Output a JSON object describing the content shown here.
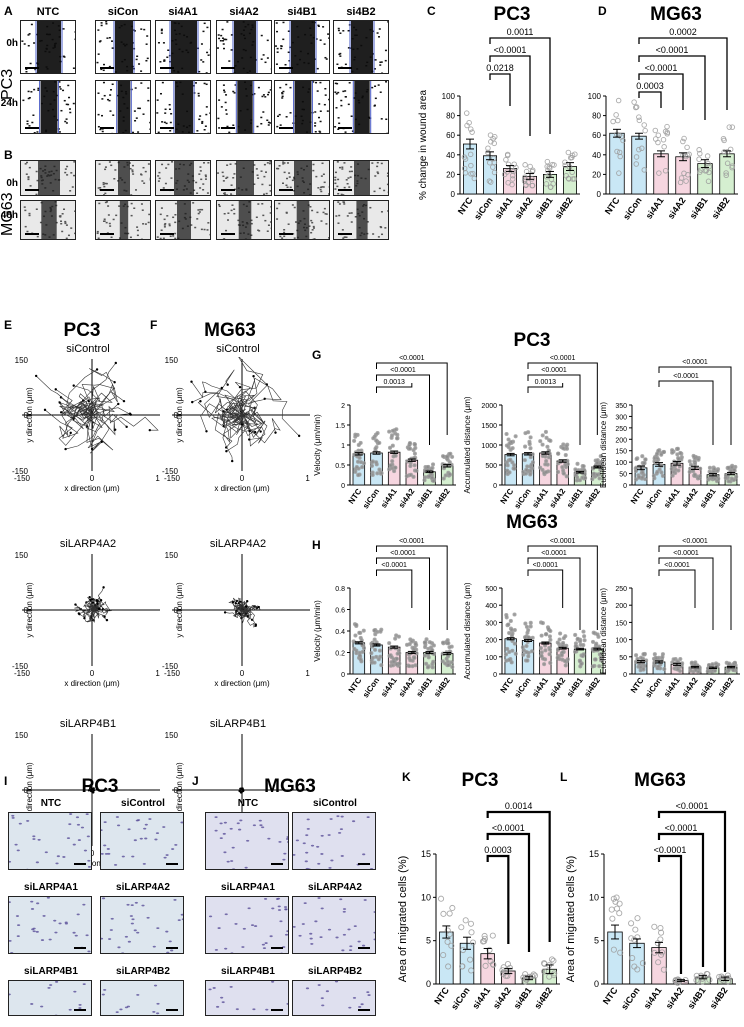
{
  "panels": {
    "A": "A",
    "B": "B",
    "C": "C",
    "D": "D",
    "E": "E",
    "F": "F",
    "G": "G",
    "H": "H",
    "I": "I",
    "J": "J",
    "K": "K",
    "L": "L"
  },
  "wound_images": {
    "columns": [
      "NTC",
      "siCon",
      "si4A1",
      "si4A2",
      "si4B1",
      "si4B2"
    ],
    "pc3_label": "PC3",
    "mg63_label": "MG63",
    "times_pc3": [
      "0h",
      "24h"
    ],
    "times_mg63": [
      "0h",
      "48h"
    ]
  },
  "tracks": {
    "pc3_title": "PC3",
    "mg63_title": "MG63",
    "conditions": [
      "siControl",
      "siLARP4A2",
      "siLARP4B1"
    ],
    "xlabel": "x direction (μm)",
    "ylabel": "y direction (μm)",
    "ticks": [
      "-150",
      "0",
      "150"
    ]
  },
  "transwell": {
    "pc3_title": "PC3",
    "mg63_title": "MG63",
    "labels": [
      "NTC",
      "siControl",
      "siLARP4A1",
      "siLARP4A2",
      "siLARP4B1",
      "siLARP4B2"
    ]
  },
  "colors": {
    "NTC": "#c9e7f5",
    "siCon": "#c9e7f5",
    "si4A1": "#f6d6e0",
    "si4A2": "#f6d6e0",
    "si4B1": "#d5efd0",
    "si4B2": "#d5efd0",
    "dots": "#9c9c9c"
  },
  "chart_data": [
    {
      "id": "C",
      "type": "bar",
      "title": "PC3",
      "ylabel": "% change in wound area",
      "ylim": [
        0,
        100
      ],
      "yticks": [
        0,
        20,
        40,
        60,
        80,
        100
      ],
      "categories": [
        "NTC",
        "siCon",
        "si4A1",
        "si4A2",
        "si4B1",
        "si4B2"
      ],
      "values": [
        51,
        39,
        26,
        18,
        20,
        28
      ],
      "errors": [
        5,
        4,
        3,
        3,
        3,
        4
      ],
      "comparisons": [
        {
          "from": "siCon",
          "to": "si4A1",
          "label": "0.0218"
        },
        {
          "from": "siCon",
          "to": "si4A2",
          "label": "<0.0001"
        },
        {
          "from": "siCon",
          "to": "si4B1",
          "label": "0.0011"
        }
      ]
    },
    {
      "id": "D",
      "type": "bar",
      "title": "MG63",
      "ylabel": "",
      "ylim": [
        0,
        100
      ],
      "yticks": [
        0,
        20,
        40,
        60,
        80,
        100
      ],
      "categories": [
        "NTC",
        "siCon",
        "si4A1",
        "si4A2",
        "si4B1",
        "si4B2"
      ],
      "values": [
        62,
        59,
        41,
        38,
        31,
        41
      ],
      "errors": [
        4,
        3,
        3,
        4,
        4,
        3
      ],
      "comparisons": [
        {
          "from": "siCon",
          "to": "si4A1",
          "label": "0.0003"
        },
        {
          "from": "siCon",
          "to": "si4A2",
          "label": "<0.0001"
        },
        {
          "from": "siCon",
          "to": "si4B1",
          "label": "<0.0001"
        },
        {
          "from": "siCon",
          "to": "si4B2",
          "label": "0.0002"
        }
      ]
    },
    {
      "id": "G1",
      "type": "bar",
      "title": "",
      "ylabel": "Velocity (μm/min)",
      "ylim": [
        0,
        2.0
      ],
      "yticks": [
        0.0,
        0.5,
        1.0,
        1.5,
        2.0
      ],
      "categories": [
        "NTC",
        "siCon",
        "si4A1",
        "si4A2",
        "si4B1",
        "si4B2"
      ],
      "values": [
        0.78,
        0.8,
        0.82,
        0.62,
        0.33,
        0.48
      ],
      "errors": [
        0.03,
        0.03,
        0.03,
        0.03,
        0.02,
        0.03
      ],
      "comparisons": [
        {
          "from": "siCon",
          "to": "si4A2",
          "label": "0.0013"
        },
        {
          "from": "siCon",
          "to": "si4B1",
          "label": "<0.0001"
        },
        {
          "from": "siCon",
          "to": "si4B2",
          "label": "<0.0001"
        }
      ]
    },
    {
      "id": "G2",
      "type": "bar",
      "title": "",
      "ylabel": "Accumulated distance (μm)",
      "ylim": [
        0,
        2000
      ],
      "yticks": [
        0,
        500,
        1000,
        1500,
        2000
      ],
      "categories": [
        "NTC",
        "siCon",
        "si4A1",
        "si4A2",
        "si4B1",
        "si4B2"
      ],
      "values": [
        760,
        780,
        800,
        600,
        320,
        450
      ],
      "errors": [
        30,
        30,
        30,
        30,
        20,
        25
      ],
      "comparisons": [
        {
          "from": "siCon",
          "to": "si4A2",
          "label": "0.0013"
        },
        {
          "from": "siCon",
          "to": "si4B1",
          "label": "<0.0001"
        },
        {
          "from": "siCon",
          "to": "si4B2",
          "label": "<0.0001"
        }
      ]
    },
    {
      "id": "G3",
      "type": "bar",
      "title": "",
      "ylabel": "Euclidean distance (μm)",
      "ylim": [
        0,
        350
      ],
      "yticks": [
        0,
        50,
        100,
        150,
        200,
        250,
        300,
        350
      ],
      "categories": [
        "NTC",
        "siCon",
        "si4A1",
        "si4A2",
        "si4B1",
        "si4B2"
      ],
      "values": [
        75,
        90,
        95,
        75,
        45,
        50
      ],
      "errors": [
        8,
        8,
        8,
        7,
        5,
        5
      ],
      "comparisons": [
        {
          "from": "siCon",
          "to": "si4B1",
          "label": "<0.0001"
        },
        {
          "from": "siCon",
          "to": "si4B2",
          "label": "<0.0001"
        }
      ]
    },
    {
      "id": "H1",
      "type": "bar",
      "title": "",
      "ylabel": "Velocity (μm/min)",
      "ylim": [
        0,
        0.8
      ],
      "yticks": [
        0.0,
        0.2,
        0.4,
        0.6,
        0.8
      ],
      "categories": [
        "NTC",
        "siCon",
        "si4A1",
        "si4A2",
        "si4B1",
        "si4B2"
      ],
      "values": [
        0.29,
        0.27,
        0.25,
        0.2,
        0.2,
        0.19
      ],
      "errors": [
        0.01,
        0.01,
        0.01,
        0.01,
        0.01,
        0.01
      ],
      "comparisons": [
        {
          "from": "siCon",
          "to": "si4A2",
          "label": "<0.0001"
        },
        {
          "from": "siCon",
          "to": "si4B1",
          "label": "<0.0001"
        },
        {
          "from": "siCon",
          "to": "si4B2",
          "label": "<0.0001"
        }
      ]
    },
    {
      "id": "H2",
      "type": "bar",
      "title": "",
      "ylabel": "Accumulated distance (μm)",
      "ylim": [
        0,
        500
      ],
      "yticks": [
        0,
        100,
        200,
        300,
        400,
        500
      ],
      "categories": [
        "NTC",
        "siCon",
        "si4A1",
        "si4A2",
        "si4B1",
        "si4B2"
      ],
      "values": [
        205,
        195,
        180,
        150,
        145,
        145
      ],
      "errors": [
        6,
        6,
        6,
        5,
        5,
        5
      ],
      "comparisons": [
        {
          "from": "siCon",
          "to": "si4A2",
          "label": "<0.0001"
        },
        {
          "from": "siCon",
          "to": "si4B1",
          "label": "<0.0001"
        },
        {
          "from": "siCon",
          "to": "si4B2",
          "label": "<0.0001"
        }
      ]
    },
    {
      "id": "H3",
      "type": "bar",
      "title": "",
      "ylabel": "Euclidean distance (μm)",
      "ylim": [
        0,
        250
      ],
      "yticks": [
        0,
        50,
        100,
        150,
        200,
        250
      ],
      "categories": [
        "NTC",
        "siCon",
        "si4A1",
        "si4A2",
        "si4B1",
        "si4B2"
      ],
      "values": [
        36,
        35,
        28,
        20,
        18,
        20
      ],
      "errors": [
        3,
        3,
        3,
        2,
        2,
        2
      ],
      "comparisons": [
        {
          "from": "siCon",
          "to": "si4A2",
          "label": "<0.0001"
        },
        {
          "from": "siCon",
          "to": "si4B1",
          "label": "<0.0001"
        },
        {
          "from": "siCon",
          "to": "si4B2",
          "label": "<0.0001"
        }
      ]
    },
    {
      "id": "K",
      "type": "bar",
      "title": "PC3",
      "ylabel": "Area of migrated cells (%)",
      "ylim": [
        0,
        15
      ],
      "yticks": [
        0,
        5,
        10,
        15
      ],
      "categories": [
        "NTC",
        "siCon",
        "si4A1",
        "si4A2",
        "si4B1",
        "si4B2"
      ],
      "values": [
        6.0,
        4.7,
        3.5,
        1.5,
        0.7,
        1.7
      ],
      "errors": [
        0.7,
        0.7,
        0.6,
        0.3,
        0.2,
        0.5
      ],
      "comparisons": [
        {
          "from": "si4A1",
          "to": "si4A2",
          "label": "0.0003"
        },
        {
          "from": "si4A1",
          "to": "si4B1",
          "label": "<0.0001"
        },
        {
          "from": "si4A1",
          "to": "si4B2",
          "label": "0.0014"
        }
      ]
    },
    {
      "id": "L",
      "type": "bar",
      "title": "MG63",
      "ylabel": "Area of migrated cells (%)",
      "ylim": [
        0,
        15
      ],
      "yticks": [
        0,
        5,
        10,
        15
      ],
      "categories": [
        "NTC",
        "siCon",
        "si4A1",
        "si4A2",
        "si4B1",
        "si4B2"
      ],
      "values": [
        6.0,
        4.7,
        4.2,
        0.4,
        0.8,
        0.6
      ],
      "errors": [
        0.8,
        0.5,
        0.6,
        0.1,
        0.2,
        0.2
      ],
      "comparisons": [
        {
          "from": "si4A1",
          "to": "si4A2",
          "label": "<0.0001"
        },
        {
          "from": "si4A1",
          "to": "si4B1",
          "label": "<0.0001"
        },
        {
          "from": "si4A1",
          "to": "si4B2",
          "label": "<0.0001"
        }
      ]
    }
  ]
}
